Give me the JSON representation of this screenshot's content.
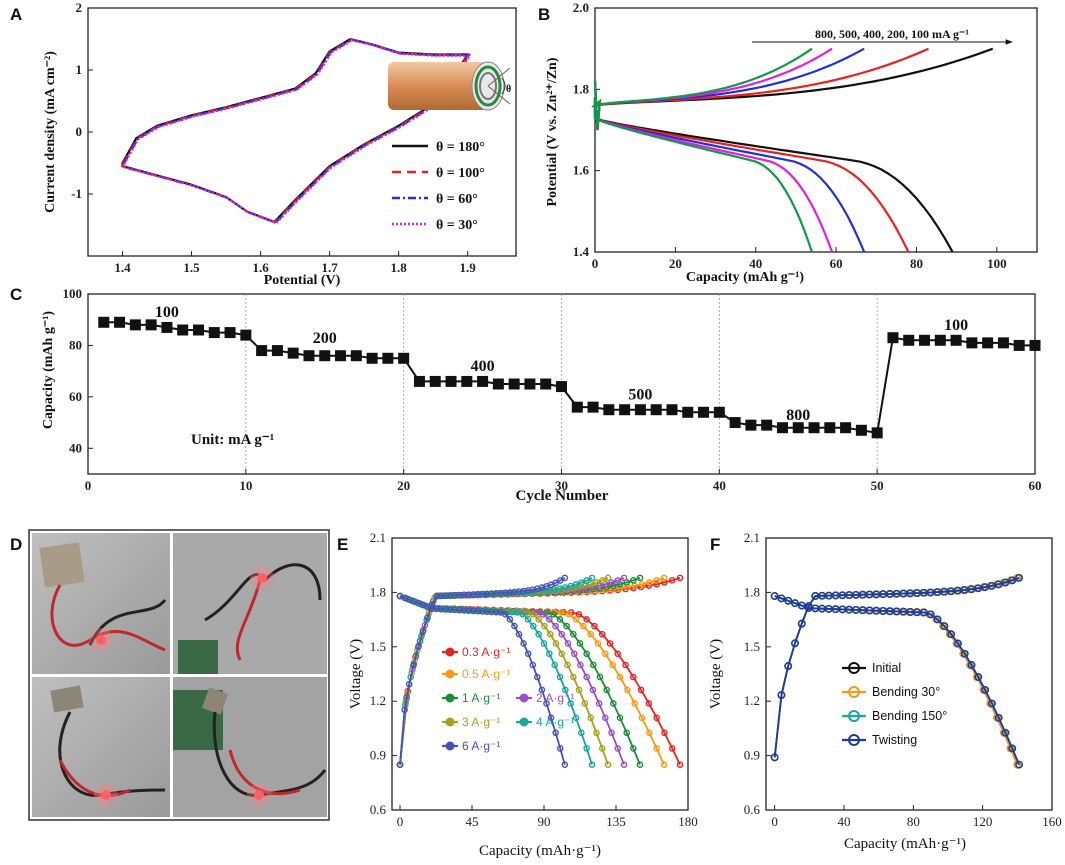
{
  "panels": {
    "A": {
      "label": "A"
    },
    "B": {
      "label": "B"
    },
    "C": {
      "label": "C"
    },
    "D": {
      "label": "D"
    },
    "E": {
      "label": "E"
    },
    "F": {
      "label": "F"
    }
  },
  "chart_data": [
    {
      "id": "A",
      "type": "line",
      "title": "",
      "xlabel": "Potential (V)",
      "ylabel": "Current density (mA cm⁻²)",
      "xlim": [
        1.35,
        1.97
      ],
      "ylim": [
        -2,
        2
      ],
      "xticks": [
        "1.4",
        "1.5",
        "1.6",
        "1.7",
        "1.8",
        "1.9"
      ],
      "yticks": [
        "-1",
        "0",
        "1",
        "2"
      ],
      "cv_shape": {
        "upper": [
          [
            1.4,
            -0.5
          ],
          [
            1.42,
            -0.1
          ],
          [
            1.45,
            0.1
          ],
          [
            1.5,
            0.27
          ],
          [
            1.55,
            0.4
          ],
          [
            1.6,
            0.55
          ],
          [
            1.65,
            0.7
          ],
          [
            1.68,
            0.95
          ],
          [
            1.7,
            1.3
          ],
          [
            1.73,
            1.5
          ],
          [
            1.76,
            1.42
          ],
          [
            1.8,
            1.28
          ],
          [
            1.85,
            1.25
          ],
          [
            1.9,
            1.25
          ]
        ],
        "lower": [
          [
            1.9,
            1.25
          ],
          [
            1.88,
            0.9
          ],
          [
            1.85,
            0.45
          ],
          [
            1.8,
            0.1
          ],
          [
            1.75,
            -0.2
          ],
          [
            1.7,
            -0.55
          ],
          [
            1.65,
            -1.1
          ],
          [
            1.62,
            -1.45
          ],
          [
            1.58,
            -1.28
          ],
          [
            1.55,
            -1.05
          ],
          [
            1.5,
            -0.85
          ],
          [
            1.45,
            -0.7
          ],
          [
            1.4,
            -0.55
          ]
        ]
      },
      "series": [
        {
          "name": "θ = 180°",
          "color": "#111111",
          "dash": "",
          "scale": 1.0
        },
        {
          "name": "θ = 100°",
          "color": "#e8231f",
          "dash": "9 6",
          "scale": 1.0
        },
        {
          "name": "θ = 60°",
          "color": "#2030d8",
          "dash": "8 3 2 3",
          "scale": 1.0
        },
        {
          "name": "θ = 30°",
          "color": "#e020e0",
          "dash": "2 2",
          "scale": 1.0
        }
      ],
      "inset_angle_label": "θ"
    },
    {
      "id": "B",
      "type": "line",
      "xlabel": "Capacity (mAh g⁻¹)",
      "ylabel": "Potential (V vs. Zn²⁺/Zn)",
      "xlim": [
        0,
        110
      ],
      "ylim": [
        1.4,
        2.0
      ],
      "xticks": [
        "0",
        "20",
        "40",
        "60",
        "80",
        "100"
      ],
      "yticks": [
        "1.4",
        "1.6",
        "1.8",
        "2.0"
      ],
      "annotation": "800, 500, 400, 200, 100 mA g⁻¹",
      "series": [
        {
          "name": "100 mA g⁻¹",
          "color": "#111111",
          "charge_cap": 99,
          "discharge_cap": 89
        },
        {
          "name": "200 mA g⁻¹",
          "color": "#e8231f",
          "charge_cap": 83,
          "discharge_cap": 78
        },
        {
          "name": "400 mA g⁻¹",
          "color": "#2030d8",
          "charge_cap": 67,
          "discharge_cap": 67
        },
        {
          "name": "500 mA g⁻¹",
          "color": "#e020e0",
          "charge_cap": 59,
          "discharge_cap": 59
        },
        {
          "name": "800 mA g⁻¹",
          "color": "#119944",
          "charge_cap": 54,
          "discharge_cap": 54
        }
      ]
    },
    {
      "id": "C",
      "type": "scatter",
      "xlabel": "Cycle Number",
      "ylabel": "Capacity (mAh g⁻¹)",
      "xlim": [
        0,
        60
      ],
      "ylim": [
        30,
        100
      ],
      "xticks": [
        "0",
        "10",
        "20",
        "30",
        "40",
        "50",
        "60"
      ],
      "yticks": [
        "40",
        "60",
        "80",
        "100"
      ],
      "unit_label": "Unit: mA g⁻¹",
      "rate_labels": [
        {
          "text": "100",
          "x": 5,
          "y": 91
        },
        {
          "text": "200",
          "x": 15,
          "y": 81
        },
        {
          "text": "400",
          "x": 25,
          "y": 70
        },
        {
          "text": "500",
          "x": 35,
          "y": 59
        },
        {
          "text": "800",
          "x": 45,
          "y": 51
        },
        {
          "text": "100",
          "x": 55,
          "y": 86
        }
      ],
      "x": [
        1,
        2,
        3,
        4,
        5,
        6,
        7,
        8,
        9,
        10,
        11,
        12,
        13,
        14,
        15,
        16,
        17,
        18,
        19,
        20,
        21,
        22,
        23,
        24,
        25,
        26,
        27,
        28,
        29,
        30,
        31,
        32,
        33,
        34,
        35,
        36,
        37,
        38,
        39,
        40,
        41,
        42,
        43,
        44,
        45,
        46,
        47,
        48,
        49,
        50,
        51,
        52,
        53,
        54,
        55,
        56,
        57,
        58,
        59,
        60
      ],
      "values": [
        89,
        89,
        88,
        88,
        87,
        86,
        86,
        85,
        85,
        84,
        78,
        78,
        77,
        76,
        76,
        76,
        76,
        75,
        75,
        75,
        66,
        66,
        66,
        66,
        66,
        65,
        65,
        65,
        65,
        64,
        56,
        56,
        55,
        55,
        55,
        55,
        55,
        54,
        54,
        54,
        50,
        49,
        49,
        48,
        48,
        48,
        48,
        48,
        47,
        46,
        83,
        82,
        82,
        82,
        82,
        81,
        81,
        81,
        80,
        80
      ]
    },
    {
      "id": "E",
      "type": "line",
      "xlabel": "Capacity (mAh·g⁻¹)",
      "ylabel": "Voltage (V)",
      "xlim": [
        -5,
        180
      ],
      "ylim": [
        0.6,
        2.1
      ],
      "xticks": [
        "0",
        "45",
        "90",
        "135",
        "180"
      ],
      "yticks": [
        "0.6",
        "0.9",
        "1.2",
        "1.5",
        "1.8",
        "2.1"
      ],
      "series": [
        {
          "name": "0.3 A·g⁻¹",
          "color": "#e8231f",
          "capacity": 175
        },
        {
          "name": "0.5 A·g⁻¹",
          "color": "#f59a16",
          "capacity": 165
        },
        {
          "name": "1 A·g⁻¹",
          "color": "#1b8c3a",
          "capacity": 150
        },
        {
          "name": "2 A·g⁻¹",
          "color": "#9b4fc3",
          "capacity": 140
        },
        {
          "name": "3 A·g⁻¹",
          "color": "#a4a21c",
          "capacity": 130
        },
        {
          "name": "4 A·g⁻¹",
          "color": "#1aa79a",
          "capacity": 120
        },
        {
          "name": "6 A·g⁻¹",
          "color": "#4653b5",
          "capacity": 103
        }
      ]
    },
    {
      "id": "F",
      "type": "line",
      "xlabel": "Capacity (mAh·g⁻¹)",
      "ylabel": "Voltage (V)",
      "xlim": [
        -5,
        160
      ],
      "ylim": [
        0.6,
        2.1
      ],
      "xticks": [
        "0",
        "40",
        "80",
        "120",
        "160"
      ],
      "yticks": [
        "0.6",
        "0.9",
        "1.2",
        "1.5",
        "1.8",
        "2.1"
      ],
      "series": [
        {
          "name": "Initial",
          "color": "#111111",
          "capacity": 140
        },
        {
          "name": "Bending 30°",
          "color": "#f59a16",
          "capacity": 140
        },
        {
          "name": "Bending 150°",
          "color": "#1aa79a",
          "capacity": 141
        },
        {
          "name": "Twisting",
          "color": "#1f3a9e",
          "capacity": 141
        }
      ]
    }
  ]
}
